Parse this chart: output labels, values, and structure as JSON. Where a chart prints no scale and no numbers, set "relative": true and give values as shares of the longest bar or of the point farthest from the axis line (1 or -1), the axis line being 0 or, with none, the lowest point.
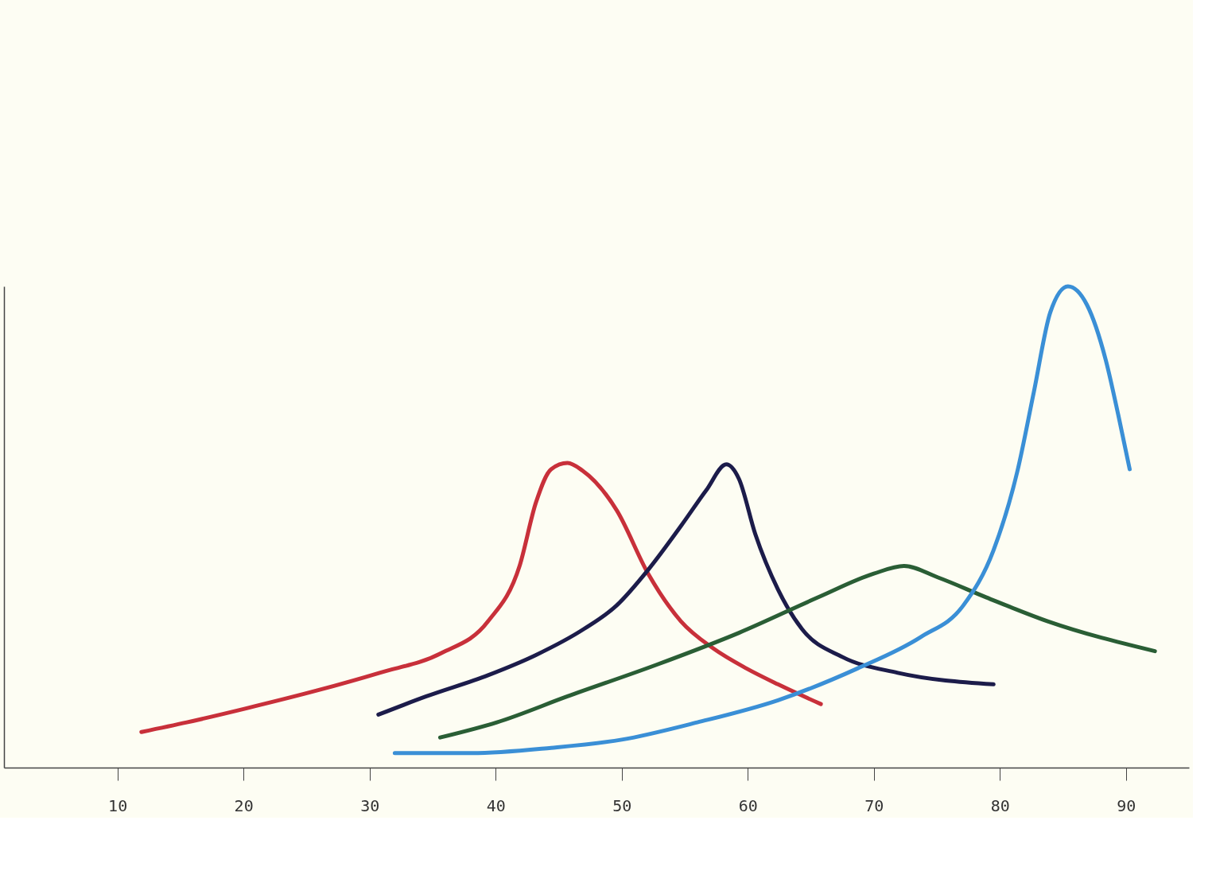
{
  "chart_data": {
    "type": "line",
    "relative": true,
    "xlim": [
      1,
      95
    ],
    "xticks": [
      10,
      20,
      30,
      40,
      50,
      60,
      70,
      80,
      90
    ],
    "marker": "none",
    "line_style": "solid",
    "series": [
      {
        "color": "#c8303a",
        "x": [
          11.9,
          15.5,
          20.2,
          25.8,
          30.8,
          35.7,
          39.4,
          41.9,
          43.2,
          44.4,
          45.7,
          46.9,
          49.6,
          52.1,
          54.7,
          57.3,
          59.9,
          62.4,
          65.8
        ],
        "values": [
          0.074,
          0.094,
          0.123,
          0.16,
          0.197,
          0.238,
          0.304,
          0.419,
          0.551,
          0.62,
          0.633,
          0.617,
          0.535,
          0.403,
          0.304,
          0.247,
          0.206,
          0.173,
          0.132
        ]
      },
      {
        "color": "#1c1c4a",
        "x": [
          30.7,
          34.5,
          39.4,
          43.2,
          47.0,
          49.6,
          52.1,
          54.7,
          56.7,
          58.3,
          59.3,
          60.6,
          62.4,
          64.3,
          67.5,
          71.9,
          79.5
        ],
        "values": [
          0.11,
          0.148,
          0.192,
          0.234,
          0.288,
          0.337,
          0.411,
          0.502,
          0.576,
          0.63,
          0.6,
          0.485,
          0.37,
          0.288,
          0.23,
          0.197,
          0.173
        ]
      },
      {
        "color": "#2a5e35",
        "x": [
          35.6,
          40.1,
          45.7,
          52.8,
          59.3,
          65.6,
          70.0,
          72.4,
          75.1,
          78.9,
          83.8,
          92.3
        ],
        "values": [
          0.0625,
          0.094,
          0.148,
          0.214,
          0.28,
          0.354,
          0.403,
          0.419,
          0.395,
          0.354,
          0.304,
          0.242
        ]
      },
      {
        "color": "#3a8fd6",
        "x": [
          32.0,
          38.1,
          44.4,
          50.0,
          56.0,
          62.4,
          68.7,
          73.7,
          77.1,
          79.5,
          81.4,
          82.7,
          84.0,
          85.4,
          86.9,
          88.4,
          89.4,
          90.3
        ],
        "values": [
          0.03,
          0.03,
          0.041,
          0.058,
          0.094,
          0.14,
          0.206,
          0.271,
          0.337,
          0.452,
          0.617,
          0.781,
          0.946,
          1,
          0.962,
          0.847,
          0.732,
          0.62
        ]
      }
    ]
  }
}
